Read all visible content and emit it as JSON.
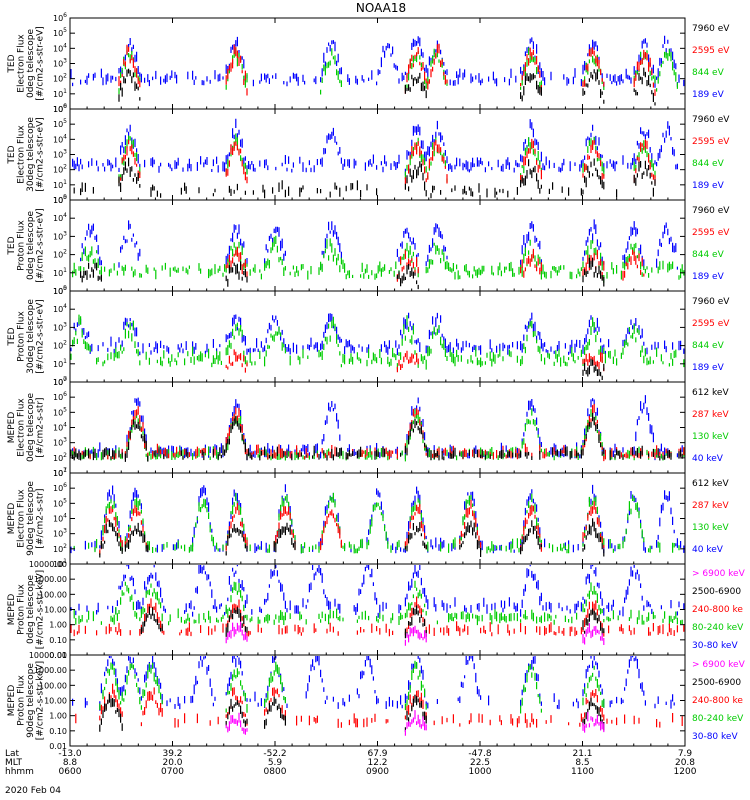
{
  "chart_data": {
    "type": "scatter",
    "title": "NOAA18",
    "date_label": "2020 Feb 04",
    "x_axis": {
      "rows": [
        {
          "label": "Lat",
          "values": [
            "-13.0",
            "39.2",
            "-52.2",
            "67.9",
            "-47.8",
            "21.1",
            "7.9"
          ]
        },
        {
          "label": "MLT",
          "values": [
            "8.8",
            "20.0",
            "5.9",
            "12.2",
            "22.5",
            "8.5",
            "20.8"
          ]
        },
        {
          "label": "hhmm",
          "values": [
            "0600",
            "0700",
            "0800",
            "0900",
            "1000",
            "1100",
            "1200"
          ]
        }
      ],
      "range_hours": [
        6,
        12
      ]
    },
    "panels": [
      {
        "ylabel": [
          "TED",
          "Electron Flux",
          "0deg telescope",
          "[#/cm2-s-str-eV]"
        ],
        "scale": "log",
        "ylim_exp": [
          0,
          6
        ],
        "ytick_labels": [
          "10^0",
          "10^1",
          "10^2",
          "10^3",
          "10^4",
          "10^5",
          "10^6"
        ],
        "legend": [
          {
            "label": "7960 eV",
            "color": "#000000"
          },
          {
            "label": "2595 eV",
            "color": "#ff0000"
          },
          {
            "label": "844 eV",
            "color": "#00cc00"
          },
          {
            "label": "189 eV",
            "color": "#0000ff"
          }
        ],
        "series": [
          {
            "color": "#0000ff",
            "level": 1.9,
            "amp": 2.2,
            "noise": 0.5,
            "bg": 1.9,
            "bgp": 0.5,
            "bursts": [
              6.58,
              7.62,
              8.55,
              9.1,
              9.38,
              9.58,
              10.5,
              11.1,
              11.6,
              11.82
            ]
          },
          {
            "color": "#00cc00",
            "level": 1.4,
            "amp": 2.0,
            "noise": 0.45,
            "bg": 0,
            "bgp": 0,
            "bursts": [
              6.58,
              7.62,
              8.55,
              9.38,
              9.58,
              10.5,
              11.1,
              11.6,
              11.82
            ]
          },
          {
            "color": "#ff0000",
            "level": 1.3,
            "amp": 2.2,
            "noise": 0.4,
            "bg": 0,
            "bgp": 0,
            "bursts": [
              6.58,
              7.62,
              9.38,
              9.58,
              10.5,
              11.1,
              11.6
            ]
          },
          {
            "color": "#000000",
            "level": 0.7,
            "amp": 1.4,
            "noise": 0.4,
            "bg": 0,
            "bgp": 0,
            "bursts": [
              6.58,
              9.38,
              10.5,
              11.1,
              11.6
            ]
          }
        ]
      },
      {
        "ylabel": [
          "TED",
          "Electron Flux",
          "30deg telescope",
          "[#/cm2-s-str-eV]"
        ],
        "scale": "log",
        "ylim_exp": [
          0,
          6
        ],
        "ytick_labels": [
          "10^0",
          "10^1",
          "10^2",
          "10^3",
          "10^4",
          "10^5",
          "10^6"
        ],
        "legend": [
          {
            "label": "7960 eV",
            "color": "#000000"
          },
          {
            "label": "2595 eV",
            "color": "#ff0000"
          },
          {
            "label": "844 eV",
            "color": "#00cc00"
          },
          {
            "label": "189 eV",
            "color": "#0000ff"
          }
        ],
        "series": [
          {
            "color": "#0000ff",
            "level": 2.2,
            "amp": 2.2,
            "noise": 0.5,
            "bg": 2.2,
            "bgp": 0.55,
            "bursts": [
              6.58,
              7.62,
              8.55,
              9.38,
              9.58,
              10.5,
              11.1,
              11.6,
              11.82
            ]
          },
          {
            "color": "#00cc00",
            "level": 1.4,
            "amp": 2.2,
            "noise": 0.45,
            "bg": 0,
            "bgp": 0,
            "bursts": [
              6.58,
              7.62,
              9.38,
              9.58,
              10.5,
              11.1,
              11.6
            ]
          },
          {
            "color": "#ff0000",
            "level": 1.2,
            "amp": 2.3,
            "noise": 0.4,
            "bg": 0,
            "bgp": 0,
            "bursts": [
              6.58,
              7.62,
              9.38,
              9.58,
              10.5,
              11.1,
              11.6
            ]
          },
          {
            "color": "#000000",
            "level": 0.6,
            "amp": 1.4,
            "noise": 0.5,
            "bg": 0.5,
            "bgp": 0.25,
            "bursts": [
              6.58,
              9.38,
              10.5,
              11.1,
              11.6
            ]
          }
        ]
      },
      {
        "ylabel": [
          "TED",
          "Proton Flux",
          "0deg telescope",
          "[#/cm2-s-str-eV]"
        ],
        "scale": "log",
        "ylim_exp": [
          0,
          5
        ],
        "ytick_labels": [
          "10^0",
          "10^1",
          "10^2",
          "10^3",
          "10^4",
          "10^5"
        ],
        "legend": [
          {
            "label": "7960 eV",
            "color": "#000000"
          },
          {
            "label": "2595 eV",
            "color": "#ff0000"
          },
          {
            "label": "844 eV",
            "color": "#00cc00"
          },
          {
            "label": "189 eV",
            "color": "#0000ff"
          }
        ],
        "series": [
          {
            "color": "#0000ff",
            "level": 1.6,
            "amp": 1.6,
            "noise": 0.4,
            "bg": 0,
            "bgp": 0,
            "bursts": [
              6.2,
              6.58,
              7.62,
              8.0,
              8.55,
              9.3,
              9.58,
              10.5,
              11.1,
              11.5,
              11.82
            ]
          },
          {
            "color": "#00cc00",
            "level": 1.0,
            "amp": 1.2,
            "noise": 0.5,
            "bg": 1.0,
            "bgp": 0.6,
            "bursts": [
              6.2,
              7.62,
              8.0,
              8.55,
              9.3,
              9.58,
              10.5,
              11.1,
              11.5
            ]
          },
          {
            "color": "#ff0000",
            "level": 0.9,
            "amp": 0.8,
            "noise": 0.4,
            "bg": 0,
            "bgp": 0,
            "bursts": [
              7.62,
              9.3,
              10.5,
              11.1,
              11.5
            ]
          },
          {
            "color": "#000000",
            "level": 0.5,
            "amp": 0.6,
            "noise": 0.4,
            "bg": 0,
            "bgp": 0,
            "bursts": [
              6.2,
              7.62,
              9.3,
              11.1
            ]
          }
        ]
      },
      {
        "ylabel": [
          "TED",
          "Proton Flux",
          "30deg telescope",
          "[#/cm2-s-str-eV]"
        ],
        "scale": "log",
        "ylim_exp": [
          0,
          5
        ],
        "ytick_labels": [
          "10^0",
          "10^1",
          "10^2",
          "10^3",
          "10^4",
          "10^5"
        ],
        "legend": [
          {
            "label": "7960 eV",
            "color": "#000000"
          },
          {
            "label": "2595 eV",
            "color": "#ff0000"
          },
          {
            "label": "844 eV",
            "color": "#00cc00"
          },
          {
            "label": "189 eV",
            "color": "#0000ff"
          }
        ],
        "series": [
          {
            "color": "#0000ff",
            "level": 1.8,
            "amp": 1.4,
            "noise": 0.4,
            "bg": 1.8,
            "bgp": 0.5,
            "bursts": [
              6.1,
              6.58,
              7.62,
              8.0,
              8.55,
              9.3,
              9.58,
              10.5,
              11.1,
              11.5
            ]
          },
          {
            "color": "#00cc00",
            "level": 1.2,
            "amp": 1.6,
            "noise": 0.5,
            "bg": 1.2,
            "bgp": 0.6,
            "bursts": [
              6.1,
              6.58,
              7.62,
              8.0,
              8.55,
              9.3,
              9.58,
              10.5,
              11.1,
              11.5
            ]
          },
          {
            "color": "#ff0000",
            "level": 0.8,
            "amp": 0.5,
            "noise": 0.3,
            "bg": 0,
            "bgp": 0,
            "bursts": [
              7.62,
              9.3,
              11.1
            ]
          },
          {
            "color": "#000000",
            "level": 0.4,
            "amp": 0.4,
            "noise": 0.3,
            "bg": 0,
            "bgp": 0,
            "bursts": [
              11.1
            ]
          }
        ]
      },
      {
        "ylabel": [
          "MEPED",
          "Electron Flux",
          "0deg telescope",
          "[#/cm2-s-str]"
        ],
        "scale": "log",
        "ylim_exp": [
          1,
          7
        ],
        "ytick_labels": [
          "10^1",
          "10^2",
          "10^3",
          "10^4",
          "10^5",
          "10^6",
          "10^7"
        ],
        "legend": [
          {
            "label": "612 keV",
            "color": "#000000"
          },
          {
            "label": "287 keV",
            "color": "#ff0000"
          },
          {
            "label": "130 keV",
            "color": "#00cc00"
          },
          {
            "label": "40 keV",
            "color": "#0000ff"
          }
        ],
        "series": [
          {
            "color": "#0000ff",
            "level": 2.3,
            "amp": 3.2,
            "noise": 0.4,
            "bg": 2.3,
            "bgp": 0.5,
            "bursts": [
              6.65,
              7.62,
              8.55,
              9.38,
              10.5,
              11.1,
              11.6
            ]
          },
          {
            "color": "#00cc00",
            "level": 2.1,
            "amp": 2.5,
            "noise": 0.3,
            "bg": 2.1,
            "bgp": 0.5,
            "bursts": [
              6.65,
              7.62,
              9.38,
              10.5,
              11.1
            ]
          },
          {
            "color": "#ff0000",
            "level": 2.2,
            "amp": 2.6,
            "noise": 0.35,
            "bg": 2.2,
            "bgp": 0.45,
            "bursts": [
              6.65,
              7.62,
              9.38,
              11.1
            ]
          },
          {
            "color": "#000000",
            "level": 2.1,
            "amp": 2.2,
            "noise": 0.3,
            "bg": 2.1,
            "bgp": 0.45,
            "bursts": [
              6.65,
              7.62,
              9.38,
              11.1
            ]
          }
        ]
      },
      {
        "ylabel": [
          "MEPED",
          "Electron Flux",
          "90deg telescope",
          "[#/cm2-s-str]"
        ],
        "scale": "log",
        "ylim_exp": [
          1,
          7
        ],
        "ytick_labels": [
          "10^1",
          "10^2",
          "10^3",
          "10^4",
          "10^5",
          "10^6",
          "10^7"
        ],
        "legend": [
          {
            "label": "612 keV",
            "color": "#000000"
          },
          {
            "label": "287 keV",
            "color": "#ff0000"
          },
          {
            "label": "130 keV",
            "color": "#00cc00"
          },
          {
            "label": "40 keV",
            "color": "#0000ff"
          }
        ],
        "series": [
          {
            "color": "#0000ff",
            "level": 2.0,
            "amp": 3.5,
            "noise": 0.35,
            "bg": 2.0,
            "bgp": 0.35,
            "bursts": [
              6.4,
              6.65,
              7.3,
              7.62,
              8.1,
              8.55,
              9.0,
              9.38,
              9.9,
              10.5,
              11.1,
              11.5,
              11.82
            ]
          },
          {
            "color": "#00cc00",
            "level": 2.0,
            "amp": 3.0,
            "noise": 0.35,
            "bg": 2.0,
            "bgp": 0.45,
            "bursts": [
              6.4,
              6.65,
              7.3,
              7.62,
              8.1,
              8.55,
              9.0,
              9.38,
              9.9,
              10.5,
              11.1,
              11.5
            ]
          },
          {
            "color": "#ff0000",
            "level": 2.0,
            "amp": 2.5,
            "noise": 0.3,
            "bg": 0,
            "bgp": 0,
            "bursts": [
              6.4,
              6.65,
              7.62,
              8.1,
              8.55,
              9.38,
              9.9,
              10.5,
              11.1
            ]
          },
          {
            "color": "#000000",
            "level": 1.8,
            "amp": 1.5,
            "noise": 0.3,
            "bg": 0,
            "bgp": 0,
            "bursts": [
              6.4,
              6.65,
              7.62,
              8.1,
              9.38,
              9.9,
              10.5,
              11.1
            ]
          }
        ]
      },
      {
        "ylabel": [
          "MEPED",
          "Proton Flux",
          "0deg telescope",
          "[#/cm2-s-str-keV]"
        ],
        "scale": "log",
        "ylim_exp": [
          -2,
          4
        ],
        "ytick_labels": [
          "0.01",
          "0.10",
          "1.00",
          "10.00",
          "100.00",
          "1000.00",
          "10000.00"
        ],
        "legend": [
          {
            "label": "> 6900 keV",
            "color": "#ff00ff"
          },
          {
            "label": "2500-6900",
            "color": "#000000"
          },
          {
            "label": "240-800 ke",
            "color": "#ff0000"
          },
          {
            "label": "80-240 keV",
            "color": "#00cc00"
          },
          {
            "label": "30-80 keV",
            "color": "#0000ff"
          }
        ],
        "series": [
          {
            "color": "#0000ff",
            "level": 1.0,
            "amp": 2.6,
            "noise": 0.5,
            "bg": 1.0,
            "bgp": 0.35,
            "bursts": [
              6.55,
              6.8,
              7.3,
              7.62,
              8.0,
              8.4,
              8.9,
              9.38,
              10.5,
              11.1,
              11.5
            ]
          },
          {
            "color": "#00cc00",
            "level": 0.3,
            "amp": 2.0,
            "noise": 0.4,
            "bg": 0.3,
            "bgp": 0.5,
            "bursts": [
              6.55,
              6.8,
              7.62,
              9.38,
              11.1
            ]
          },
          {
            "color": "#ff0000",
            "level": -0.5,
            "amp": 1.6,
            "noise": 0.3,
            "bg": -0.5,
            "bgp": 0.3,
            "bursts": [
              6.8,
              7.62,
              9.38,
              11.1
            ]
          },
          {
            "color": "#000000",
            "level": -0.6,
            "amp": 1.3,
            "noise": 0.3,
            "bg": 0,
            "bgp": 0,
            "bursts": [
              6.8,
              7.62,
              9.38,
              11.1
            ]
          },
          {
            "color": "#ff00ff",
            "level": -1.1,
            "amp": 0.6,
            "noise": 0.3,
            "bg": 0,
            "bgp": 0,
            "bursts": [
              7.62,
              9.38,
              11.1
            ]
          }
        ]
      },
      {
        "ylabel": [
          "MEPED",
          "Proton Flux",
          "90deg telescope",
          "[#/cm2-s-str-keV]"
        ],
        "scale": "log",
        "ylim_exp": [
          -2,
          4
        ],
        "ytick_labels": [
          "0.01",
          "0.10",
          "1.00",
          "10.00",
          "100.00",
          "1000.00",
          "10000.00"
        ],
        "legend": [
          {
            "label": "> 6900 keV",
            "color": "#ff00ff"
          },
          {
            "label": "2500-6900",
            "color": "#000000"
          },
          {
            "label": "240-800 ke",
            "color": "#ff0000"
          },
          {
            "label": "80-240 keV",
            "color": "#00cc00"
          },
          {
            "label": "30-80 keV",
            "color": "#0000ff"
          }
        ],
        "series": [
          {
            "color": "#0000ff",
            "level": 0.8,
            "amp": 2.8,
            "noise": 0.45,
            "bg": 0.8,
            "bgp": 0.3,
            "bursts": [
              6.4,
              6.6,
              6.8,
              7.3,
              7.62,
              8.0,
              8.4,
              8.9,
              9.38,
              9.9,
              10.5,
              11.1,
              11.5
            ]
          },
          {
            "color": "#00cc00",
            "level": 0.4,
            "amp": 2.5,
            "noise": 0.4,
            "bg": 0,
            "bgp": 0,
            "bursts": [
              6.4,
              6.6,
              6.8,
              7.62,
              8.0,
              9.38,
              10.5,
              11.1
            ]
          },
          {
            "color": "#ff0000",
            "level": -0.3,
            "amp": 1.6,
            "noise": 0.35,
            "bg": -0.5,
            "bgp": 0.2,
            "bursts": [
              6.4,
              6.8,
              7.62,
              8.0,
              9.38,
              11.1
            ]
          },
          {
            "color": "#000000",
            "level": -0.7,
            "amp": 1.5,
            "noise": 0.3,
            "bg": 0,
            "bgp": 0,
            "bursts": [
              6.4,
              7.62,
              8.0,
              9.38,
              11.1
            ]
          },
          {
            "color": "#ff00ff",
            "level": -1.1,
            "amp": 0.8,
            "noise": 0.3,
            "bg": 0,
            "bgp": 0,
            "bursts": [
              7.62,
              9.38,
              11.1
            ]
          }
        ]
      }
    ]
  }
}
